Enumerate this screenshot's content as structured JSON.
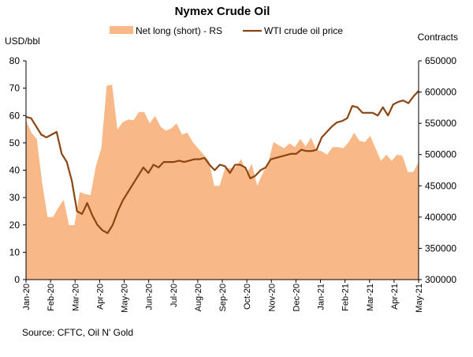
{
  "chart_data": {
    "type": "area",
    "title": "Nymex Crude Oil",
    "source": "Source: CFTC, Oil N' Gold",
    "y_left": {
      "label": "USD/bbl",
      "min": 0,
      "max": 80,
      "step": 10,
      "ticks": [
        "0",
        "10",
        "20",
        "30",
        "40",
        "50",
        "60",
        "70",
        "80"
      ]
    },
    "y_right": {
      "label": "Contracts",
      "min": 300000,
      "max": 650000,
      "step": 50000,
      "ticks": [
        "300000",
        "350000",
        "400000",
        "450000",
        "500000",
        "550000",
        "600000",
        "650000"
      ]
    },
    "x_ticks": [
      "Jan-20",
      "Feb-20",
      "Mar-20",
      "Apr-20",
      "May-20",
      "Jun-20",
      "Jul-20",
      "Aug-20",
      "Sep-20",
      "Oct-20",
      "Nov-20",
      "Dec-20",
      "Jan-21",
      "Feb-21",
      "Mar-21",
      "Apr-21",
      "May-21"
    ],
    "grid": false,
    "legend": "top",
    "series": [
      {
        "name": "Net long (short) - RS",
        "kind": "area",
        "axis": "right",
        "color": "#F8B888",
        "values": [
          555000,
          535000,
          525000,
          455000,
          400000,
          400000,
          415000,
          428000,
          387000,
          387000,
          440000,
          437000,
          435000,
          482000,
          510000,
          610000,
          612000,
          540000,
          552000,
          556000,
          555000,
          568000,
          568000,
          550000,
          562000,
          545000,
          538000,
          542000,
          550000,
          532000,
          535000,
          520000,
          510000,
          500000,
          490000,
          450000,
          450000,
          478000,
          478000,
          480000,
          493000,
          470000,
          485000,
          450000,
          470000,
          485000,
          520000,
          515000,
          510000,
          518000,
          512000,
          525000,
          513000,
          527000,
          508000,
          505000,
          500000,
          512000,
          512000,
          510000,
          520000,
          535000,
          522000,
          520000,
          530000,
          510000,
          490000,
          500000,
          490000,
          500000,
          498000,
          472000,
          472000,
          488000
        ]
      },
      {
        "name": "WTI crude oil price",
        "kind": "line",
        "axis": "left",
        "color": "#8B4513",
        "values": [
          59.5,
          59,
          56,
          53,
          52,
          53,
          54,
          46,
          43,
          36,
          25,
          24,
          28,
          23.5,
          20,
          18,
          17,
          20,
          25,
          29,
          32,
          35,
          38,
          41,
          39,
          42,
          41,
          43,
          43,
          43,
          43.5,
          43,
          43.5,
          44,
          44,
          44.5,
          42,
          40,
          42,
          41.5,
          39,
          42,
          42,
          41,
          37,
          38,
          40,
          41,
          44,
          44.5,
          45,
          45.5,
          46,
          46,
          47.5,
          47,
          47,
          47.5,
          52,
          54,
          56,
          57.5,
          58,
          59,
          63.5,
          63,
          61,
          61,
          61,
          60,
          63,
          60,
          64,
          65,
          65.5,
          64.5,
          67,
          69
        ]
      }
    ]
  }
}
